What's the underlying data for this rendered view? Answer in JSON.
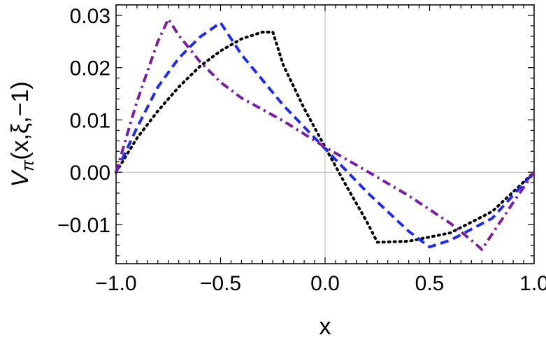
{
  "chart_data": {
    "type": "line",
    "xlabel": "x",
    "ylabel": "Vπ(x,ξ,−1)",
    "ylabel_parts": {
      "main": "V",
      "sub": "π",
      "args": "(x,ξ,−1)"
    },
    "xlim": [
      -1.0,
      1.0
    ],
    "ylim": [
      -0.0175,
      0.032
    ],
    "grid": false,
    "zero_lines": true,
    "x_ticks": [
      {
        "value": -1.0,
        "label": "−1.0"
      },
      {
        "value": -0.5,
        "label": "−0.5"
      },
      {
        "value": 0.0,
        "label": "0.0"
      },
      {
        "value": 0.5,
        "label": "0.5"
      },
      {
        "value": 1.0,
        "label": "1.0"
      }
    ],
    "y_ticks": [
      {
        "value": -0.01,
        "label": "−0.01"
      },
      {
        "value": 0.0,
        "label": "0.00"
      },
      {
        "value": 0.01,
        "label": "0.01"
      },
      {
        "value": 0.02,
        "label": "0.02"
      },
      {
        "value": 0.03,
        "label": "0.03"
      }
    ],
    "series": [
      {
        "color": "#000000",
        "dash": "dotted",
        "x": [
          -1.0,
          -0.9,
          -0.8,
          -0.7,
          -0.6,
          -0.5,
          -0.4,
          -0.3,
          -0.25,
          -0.2,
          -0.1,
          0.0,
          0.1,
          0.2,
          0.25,
          0.4,
          0.6,
          0.8,
          1.0
        ],
        "y": [
          0.0,
          0.0065,
          0.0117,
          0.0163,
          0.0202,
          0.0232,
          0.0255,
          0.0268,
          0.0268,
          0.0205,
          0.0122,
          0.0048,
          -0.0025,
          -0.0095,
          -0.0134,
          -0.0132,
          -0.0116,
          -0.0075,
          0.0
        ]
      },
      {
        "color": "#1f2cf0",
        "dash": "dashed",
        "x": [
          -1.0,
          -0.9,
          -0.8,
          -0.7,
          -0.6,
          -0.5,
          -0.4,
          -0.2,
          0.0,
          0.2,
          0.4,
          0.5,
          0.6,
          0.8,
          1.0
        ],
        "y": [
          0.0,
          0.0085,
          0.0163,
          0.0218,
          0.0258,
          0.0286,
          0.0225,
          0.0128,
          0.0045,
          -0.0038,
          -0.0113,
          -0.0143,
          -0.013,
          -0.0088,
          0.0
        ]
      },
      {
        "color": "#7b1fa2",
        "dash": "dashdot",
        "x": [
          -1.0,
          -0.9,
          -0.8,
          -0.75,
          -0.7,
          -0.6,
          -0.5,
          -0.4,
          -0.2,
          0.0,
          0.2,
          0.4,
          0.6,
          0.7,
          0.75,
          0.8,
          0.9,
          1.0
        ],
        "y": [
          0.0,
          0.0135,
          0.025,
          0.0293,
          0.0262,
          0.0212,
          0.0172,
          0.0142,
          0.0098,
          0.0048,
          0.0002,
          -0.0045,
          -0.0098,
          -0.013,
          -0.0148,
          -0.0118,
          -0.0058,
          0.0
        ]
      }
    ]
  }
}
